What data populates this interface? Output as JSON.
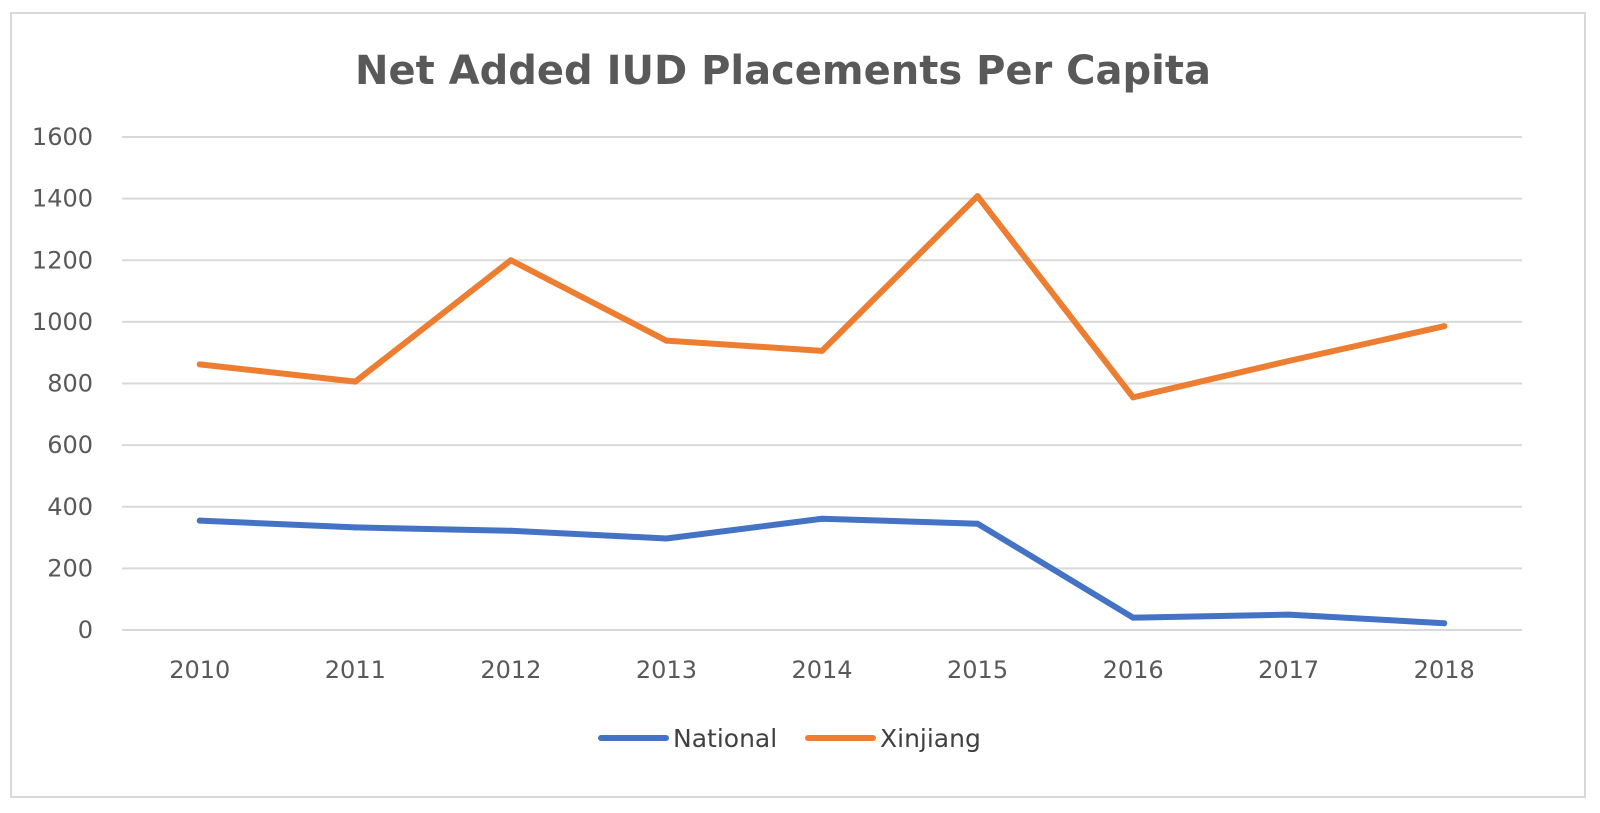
{
  "chart_data": {
    "type": "line",
    "title": "Net Added IUD Placements Per Capita",
    "xlabel": "",
    "ylabel": "",
    "categories": [
      "2010",
      "2011",
      "2012",
      "2013",
      "2014",
      "2015",
      "2016",
      "2017",
      "2018"
    ],
    "yticks": [
      "0",
      "200",
      "400",
      "600",
      "800",
      "1000",
      "1200",
      "1400",
      "1600"
    ],
    "ylim": [
      0,
      1600
    ],
    "grid": true,
    "legend_position": "bottom",
    "series": [
      {
        "name": "National",
        "color": "#4472c4",
        "values": [
          355,
          333,
          322,
          297,
          361,
          345,
          40,
          50,
          22
        ]
      },
      {
        "name": "Xinjiang",
        "color": "#ed7d31",
        "values": [
          862,
          806,
          1200,
          939,
          906,
          1408,
          755,
          873,
          986
        ]
      }
    ]
  }
}
